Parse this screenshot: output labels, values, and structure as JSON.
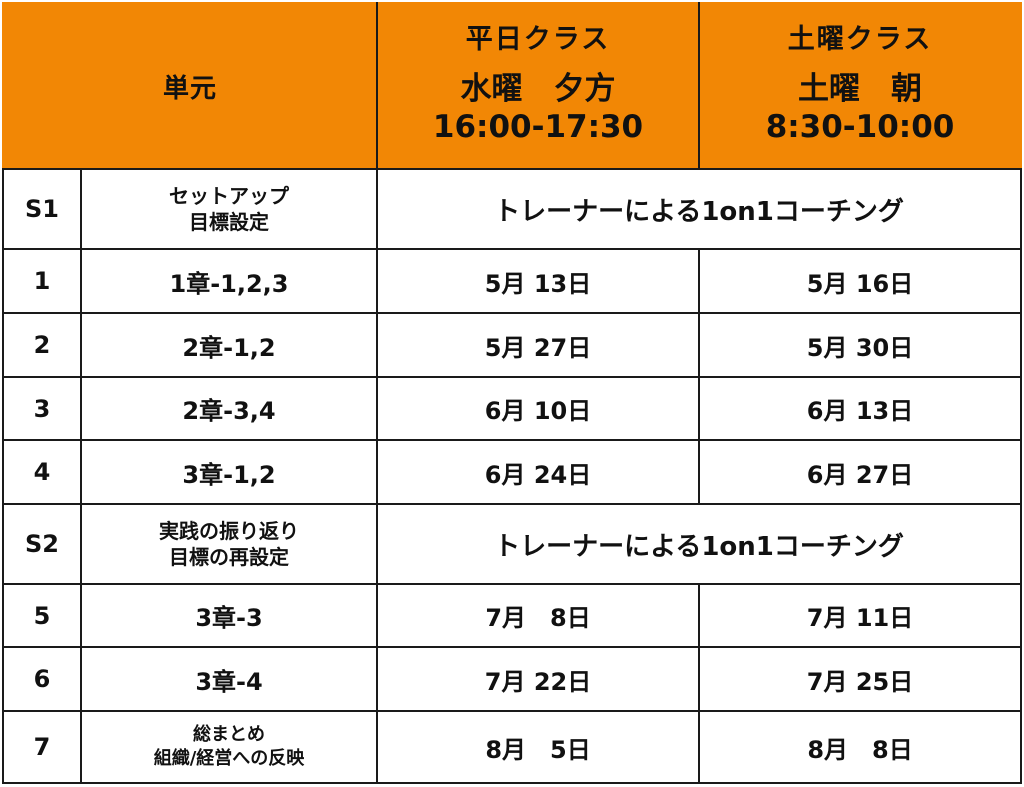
{
  "header": {
    "unit_label": "単元",
    "weekday_class": {
      "name": "平日クラス",
      "day": "水曜　夕方",
      "time": "16:00-17:30"
    },
    "saturday_class": {
      "name": "土曜クラス",
      "day": "土曜　朝",
      "time": "8:30-10:00"
    }
  },
  "rows": [
    {
      "id": "S1",
      "unit": [
        "セットアップ",
        "目標設定"
      ],
      "merged": "トレーナーによる1on1コーチング"
    },
    {
      "id": "1",
      "unit": [
        "1章-1,2,3"
      ],
      "weekday": "5月 13日",
      "saturday": "5月 16日"
    },
    {
      "id": "2",
      "unit": [
        "2章-1,2"
      ],
      "weekday": "5月 27日",
      "saturday": "5月 30日"
    },
    {
      "id": "3",
      "unit": [
        "2章-3,4"
      ],
      "weekday": "6月 10日",
      "saturday": "6月 13日"
    },
    {
      "id": "4",
      "unit": [
        "3章-1,2"
      ],
      "weekday": "6月 24日",
      "saturday": "6月 27日"
    },
    {
      "id": "S2",
      "unit": [
        "実践の振り返り",
        "目標の再設定"
      ],
      "merged": "トレーナーによる1on1コーチング"
    },
    {
      "id": "5",
      "unit": [
        "3章-3"
      ],
      "weekday": "7月　8日",
      "saturday": "7月 11日"
    },
    {
      "id": "6",
      "unit": [
        "3章-4"
      ],
      "weekday": "7月 22日",
      "saturday": "7月 25日"
    },
    {
      "id": "7",
      "unit": [
        "総まとめ",
        "組織/経営への反映"
      ],
      "weekday": "8月　5日",
      "saturday": "8月　8日"
    }
  ]
}
